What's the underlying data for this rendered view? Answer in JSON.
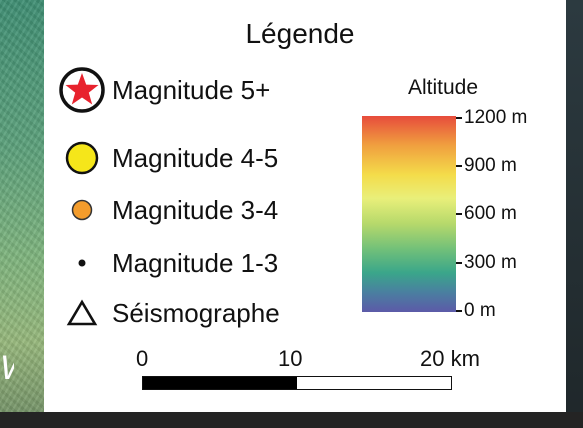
{
  "legend": {
    "title": "Légende",
    "items": [
      {
        "label": "Magnitude 5+",
        "icon": "red-star-in-circle-icon",
        "color": "#e8222d"
      },
      {
        "label": "Magnitude 4-5",
        "icon": "yellow-circle-icon",
        "color": "#f5e61a"
      },
      {
        "label": "Magnitude 3-4",
        "icon": "orange-circle-icon",
        "color": "#f39c2c"
      },
      {
        "label": "Magnitude 1-3",
        "icon": "black-dot-icon",
        "color": "#111111"
      },
      {
        "label": "Séismographe",
        "icon": "triangle-outline-icon",
        "color": "#111111"
      }
    ]
  },
  "altitude": {
    "title": "Altitude",
    "ticks": [
      "1200 m",
      "900 m",
      "600 m",
      "300 m",
      "0 m"
    ],
    "colors": {
      "high": "#e74c3c",
      "mid": "#f4dc4a",
      "low": "#5c5aa8"
    }
  },
  "scale_bar": {
    "labels": [
      "0",
      "10",
      "20 km"
    ]
  },
  "map": {
    "label_fragment": "W"
  }
}
